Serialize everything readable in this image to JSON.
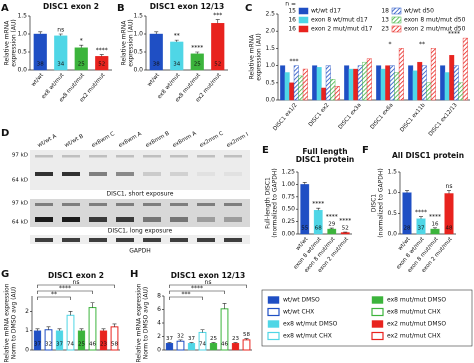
{
  "chart_data": [
    {
      "label": "A",
      "type": "bar",
      "title": "DISC1 exon 2",
      "ylabel": [
        "Relative mRNA",
        "expression (AU)"
      ],
      "categories": [
        "wt/wt",
        "ex8 wt/mut",
        "ex8 mut/mut",
        "ex2 mut/mut"
      ],
      "values": [
        1.0,
        0.95,
        0.62,
        0.38
      ],
      "errors": [
        0.06,
        0.05,
        0.07,
        0.05
      ],
      "n": [
        38,
        34,
        25,
        52
      ],
      "sig": [
        null,
        "ns",
        "*",
        "****"
      ],
      "colors": [
        "#1f4fc4",
        "#4fd6e6",
        "#3cb43c",
        "#e8231e"
      ],
      "ylim": [
        0,
        1.5
      ],
      "yticks": [
        {
          "value": 0,
          "label": "0.0"
        },
        {
          "value": 0.5,
          "label": "0.5"
        },
        {
          "value": 1,
          "label": "1.0"
        },
        {
          "value": 1.5,
          "label": "1.5"
        }
      ]
    },
    {
      "label": "B",
      "type": "bar",
      "title": "DISC1 exon 12/13",
      "ylabel": [
        "Relative mRNA",
        "expression (AU)"
      ],
      "categories": [
        "wt/wt",
        "ex8 wt/mut",
        "ex8 mut/mut",
        "ex2 mut/mut"
      ],
      "values": [
        1.0,
        0.78,
        0.45,
        1.3
      ],
      "errors": [
        0.06,
        0.05,
        0.05,
        0.1
      ],
      "n": [
        38,
        34,
        25,
        52
      ],
      "sig": [
        null,
        "**",
        "****",
        "***"
      ],
      "colors": [
        "#1f4fc4",
        "#4fd6e6",
        "#3cb43c",
        "#e8231e"
      ],
      "ylim": [
        0,
        1.5
      ],
      "yticks": [
        {
          "value": 0,
          "label": "0.0"
        },
        {
          "value": 0.5,
          "label": "0.5"
        },
        {
          "value": 1,
          "label": "1.0"
        },
        {
          "value": 1.5,
          "label": "1.5"
        }
      ]
    },
    {
      "label": "C",
      "type": "grouped_bar",
      "ylabel": [
        "Relative mRNA",
        "expression (AU)"
      ],
      "n_header": "n =",
      "categories": [
        "DISC1 ex1/2",
        "DISC1 ex2",
        "DISC1 ex3a",
        "DISC1 ex6a",
        "DISC1 ex11b",
        "DISC1 ex12/13"
      ],
      "series": [
        {
          "name": "wt/wt d17",
          "color": "#1f4fc4",
          "hatch": false,
          "n": 15,
          "values": [
            1.0,
            1.0,
            1.0,
            1.0,
            1.0,
            1.0
          ]
        },
        {
          "name": "exon 8 wt/mut d17",
          "color": "#4fd6e6",
          "hatch": false,
          "n": 16,
          "values": [
            0.8,
            0.95,
            0.9,
            0.9,
            0.85,
            0.8
          ]
        },
        {
          "name": "exon 2 mut/mut d17",
          "color": "#e8231e",
          "hatch": false,
          "n": 16,
          "values": [
            0.5,
            0.35,
            0.9,
            1.0,
            1.1,
            1.3
          ]
        },
        {
          "name": "wt/wt d50",
          "color": "#1f4fc4",
          "hatch": true,
          "n": 18,
          "values": [
            1.0,
            1.0,
            1.0,
            1.0,
            1.0,
            1.0
          ]
        },
        {
          "name": "exon 8 mut/mut d50",
          "color": "#3cb43c",
          "hatch": true,
          "n": 13,
          "values": [
            0.7,
            0.6,
            1.1,
            0.8,
            0.5,
            0.5
          ]
        },
        {
          "name": "exon 2 mut/mut d50",
          "color": "#e8231e",
          "hatch": true,
          "n": 23,
          "values": [
            0.9,
            0.4,
            1.2,
            1.5,
            1.5,
            1.8
          ]
        }
      ],
      "sig": [
        "***",
        null,
        null,
        "*",
        "**",
        "****"
      ],
      "ylim": [
        0,
        2.5
      ],
      "yticks": [
        {
          "value": 0,
          "label": "0.0"
        },
        {
          "value": 0.5,
          "label": "0.5"
        },
        {
          "value": 1,
          "label": "1.0"
        },
        {
          "value": 1.5,
          "label": "1.5"
        },
        {
          "value": 2,
          "label": "2.0"
        },
        {
          "value": 2.5,
          "label": "2.5"
        }
      ]
    },
    {
      "label": "E",
      "type": "bar",
      "title": [
        "Full length",
        "DISC1 protein"
      ],
      "ylabel": [
        "Full-length DISC1",
        "(normalized to GAPDH)"
      ],
      "categories": [
        "wt/wt",
        "exon 8 wt/mut",
        "exon 8 mut/mut",
        "exon 2 mut/mut"
      ],
      "values": [
        1.0,
        0.48,
        0.1,
        0.03
      ],
      "errors": [
        0.04,
        0.04,
        0.02,
        0.01
      ],
      "n": [
        55,
        68,
        29,
        52
      ],
      "sig": [
        null,
        "****",
        "****",
        "****"
      ],
      "colors": [
        "#1f4fc4",
        "#4fd6e6",
        "#3cb43c",
        "#e8231e"
      ],
      "ylim": [
        0,
        1.25
      ],
      "yticks": [
        {
          "value": 0,
          "label": "0.00"
        },
        {
          "value": 0.25,
          "label": "0.25"
        },
        {
          "value": 0.5,
          "label": "0.50"
        },
        {
          "value": 0.75,
          "label": "0.75"
        },
        {
          "value": 1,
          "label": "1.00"
        },
        {
          "value": 1.25,
          "label": "1.25"
        }
      ]
    },
    {
      "label": "F",
      "type": "bar",
      "title": "All DISC1 protein",
      "ylabel": [
        "DISC1",
        "(normalized to GAPDH)"
      ],
      "categories": [
        "wt/wt",
        "exon 8 wt/mut",
        "exon 8 mut/mut",
        "exon 2 mut/mut"
      ],
      "values": [
        1.0,
        0.37,
        0.12,
        0.98
      ],
      "errors": [
        0.05,
        0.05,
        0.03,
        0.07
      ],
      "n": [
        28,
        37,
        16,
        48
      ],
      "sig": [
        null,
        "****",
        "****",
        "ns"
      ],
      "colors": [
        "#1f4fc4",
        "#4fd6e6",
        "#3cb43c",
        "#e8231e"
      ],
      "ylim": [
        0,
        1.5
      ],
      "yticks": [
        {
          "value": 0,
          "label": "0.0"
        },
        {
          "value": 0.5,
          "label": "0.5"
        },
        {
          "value": 1,
          "label": "1.0"
        },
        {
          "value": 1.5,
          "label": "1.5"
        }
      ]
    },
    {
      "label": "G",
      "type": "bar",
      "title": "DISC1 exon 2",
      "ylabel": [
        "Relative mRNA expression",
        "Norm to DMSO avg (AU)"
      ],
      "values": [
        1.0,
        1.05,
        1.0,
        1.8,
        1.0,
        2.2,
        1.0,
        1.2
      ],
      "errors": [
        0.1,
        0.15,
        0.1,
        0.2,
        0.1,
        0.25,
        0.1,
        0.15
      ],
      "n": [
        37,
        32,
        37,
        74,
        25,
        46,
        23,
        58
      ],
      "brackets": [
        "ns",
        "****",
        "**"
      ],
      "ylim": [
        0,
        2.8
      ],
      "yticks": [
        0,
        1,
        2
      ]
    },
    {
      "label": "H",
      "type": "bar",
      "title": "DISC1 exon 12/13",
      "ylabel": [
        "Relative mRNA expression",
        "Norm to DMSO avg (AU)"
      ],
      "values": [
        1.0,
        1.3,
        1.0,
        2.6,
        1.0,
        6.1,
        1.0,
        1.5
      ],
      "errors": [
        0.1,
        0.2,
        0.1,
        0.4,
        0.1,
        0.8,
        0.1,
        0.2
      ],
      "n": [
        37,
        32,
        37,
        74,
        25,
        46,
        23,
        58
      ],
      "brackets": [
        "ns",
        "****",
        "***"
      ],
      "ylim": [
        0,
        8
      ],
      "yticks": [
        0,
        2,
        4,
        6,
        8
      ]
    }
  ],
  "blot": {
    "label": "D",
    "lanes": [
      "wt/wt A",
      "wt/wt B",
      "ex8wm C",
      "ex8wm A",
      "ex8mm B",
      "ex8mm A",
      "ex2mm C",
      "ex2mm I"
    ],
    "lane_colors": [
      "#1f4fc4",
      "#1f4fc4",
      "#2bb8c8",
      "#2bb8c8",
      "#3cb43c",
      "#3cb43c",
      "#e8231e",
      "#e8231e"
    ],
    "markers": [
      "97 kD",
      "64 kD",
      "97 kD",
      "64 kD"
    ],
    "captions": [
      "DISC1, short exposure",
      "DISC1, long exposure",
      "GAPDH"
    ]
  },
  "treatment_legend": [
    {
      "name": "wt/wt DMSO",
      "color": "#1f4fc4",
      "filled": true
    },
    {
      "name": "wt/wt CHX",
      "color": "#1f4fc4",
      "filled": false
    },
    {
      "name": "ex8 wt/mut DMSO",
      "color": "#4fd6e6",
      "filled": true
    },
    {
      "name": "ex8 wt/mut CHX",
      "color": "#4fd6e6",
      "filled": false
    },
    {
      "name": "ex8 mut/mut DMSO",
      "color": "#3cb43c",
      "filled": true
    },
    {
      "name": "ex8 mut/mut CHX",
      "color": "#3cb43c",
      "filled": false
    },
    {
      "name": "ex2 mut/mut DMSO",
      "color": "#e8231e",
      "filled": true
    },
    {
      "name": "ex2 mut/mut CHX",
      "color": "#e8231e",
      "filled": false
    }
  ]
}
